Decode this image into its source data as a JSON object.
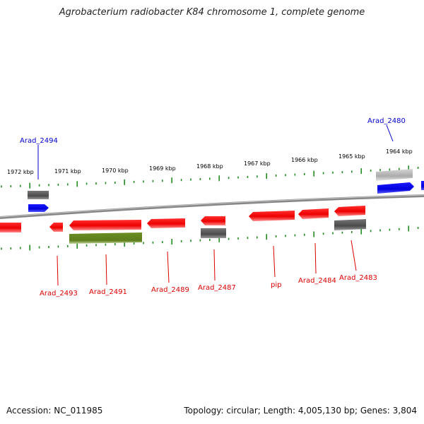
{
  "title": "Agrobacterium radiobacter K84 chromosome 1, complete genome",
  "footer": {
    "accession": "Accession: NC_011985",
    "summary": "Topology: circular; Length: 4,005,130 bp; Genes: 3,804"
  },
  "colors": {
    "forward_gene": "#0000ee",
    "reverse_gene": "#ee0000",
    "rna_gray": "#555555",
    "light_gray": "#aaaaaa",
    "green_gene": "#6b8e23",
    "ticks": "#228b22",
    "backbone": "#888888"
  },
  "scale_labels": [
    "1972 kbp",
    "1971 kbp",
    "1970 kbp",
    "1969 kbp",
    "1968 kbp",
    "1967 kbp",
    "1966 kbp",
    "1965 kbp",
    "1964 kbp"
  ],
  "gene_labels": [
    {
      "text": "Arad_2494",
      "strand": "forward"
    },
    {
      "text": "Arad_2480",
      "strand": "forward"
    },
    {
      "text": "Arad_2493",
      "strand": "reverse"
    },
    {
      "text": "Arad_2491",
      "strand": "reverse"
    },
    {
      "text": "Arad_2489",
      "strand": "reverse"
    },
    {
      "text": "Arad_2487",
      "strand": "reverse"
    },
    {
      "text": "pip",
      "strand": "reverse"
    },
    {
      "text": "Arad_2484",
      "strand": "reverse"
    },
    {
      "text": "Arad_2483",
      "strand": "reverse"
    }
  ]
}
